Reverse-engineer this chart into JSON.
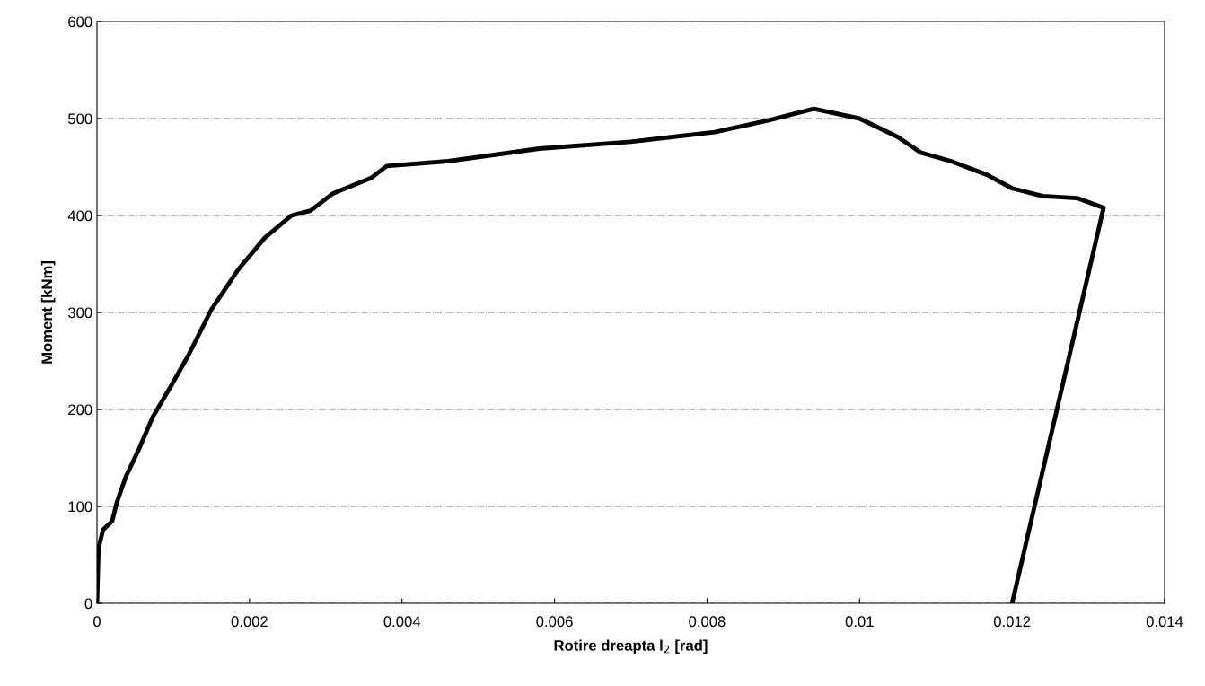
{
  "chart_data": {
    "type": "line",
    "xlabel": "Rotire dreapta l$_{2}$ [rad]",
    "ylabel": "Moment [kNm]",
    "xlim": [
      0,
      0.014
    ],
    "xticks": [
      0,
      0.002,
      0.004,
      0.006,
      0.008,
      0.01,
      0.012,
      0.014
    ],
    "ylim": [
      0,
      600
    ],
    "yticks": [
      0,
      100,
      200,
      300,
      400,
      500,
      600
    ],
    "grid": "y",
    "marker": "none",
    "line_style": "solid",
    "series": [
      {
        "color": "#000000",
        "x": [
          0,
          2e-05,
          8e-05,
          0.0002,
          0.00026,
          0.00038,
          0.00055,
          0.00073,
          0.00097,
          0.0012,
          0.0015,
          0.00185,
          0.0022,
          0.00255,
          0.0028,
          0.0031,
          0.0036,
          0.0038,
          0.0046,
          0.0058,
          0.007,
          0.0081,
          0.0088,
          0.0094,
          0.01,
          0.0105,
          0.0108,
          0.0112,
          0.01167,
          0.012,
          0.0124,
          0.01285,
          0.0132,
          0.012
        ],
        "values": [
          0,
          57,
          76,
          85,
          104,
          131,
          159,
          192,
          224,
          256,
          303,
          344,
          377,
          400,
          405,
          423,
          439,
          451,
          456,
          469,
          476,
          486,
          498,
          510,
          500,
          481,
          465,
          456,
          442,
          428,
          420,
          418,
          408,
          0
        ]
      }
    ]
  }
}
